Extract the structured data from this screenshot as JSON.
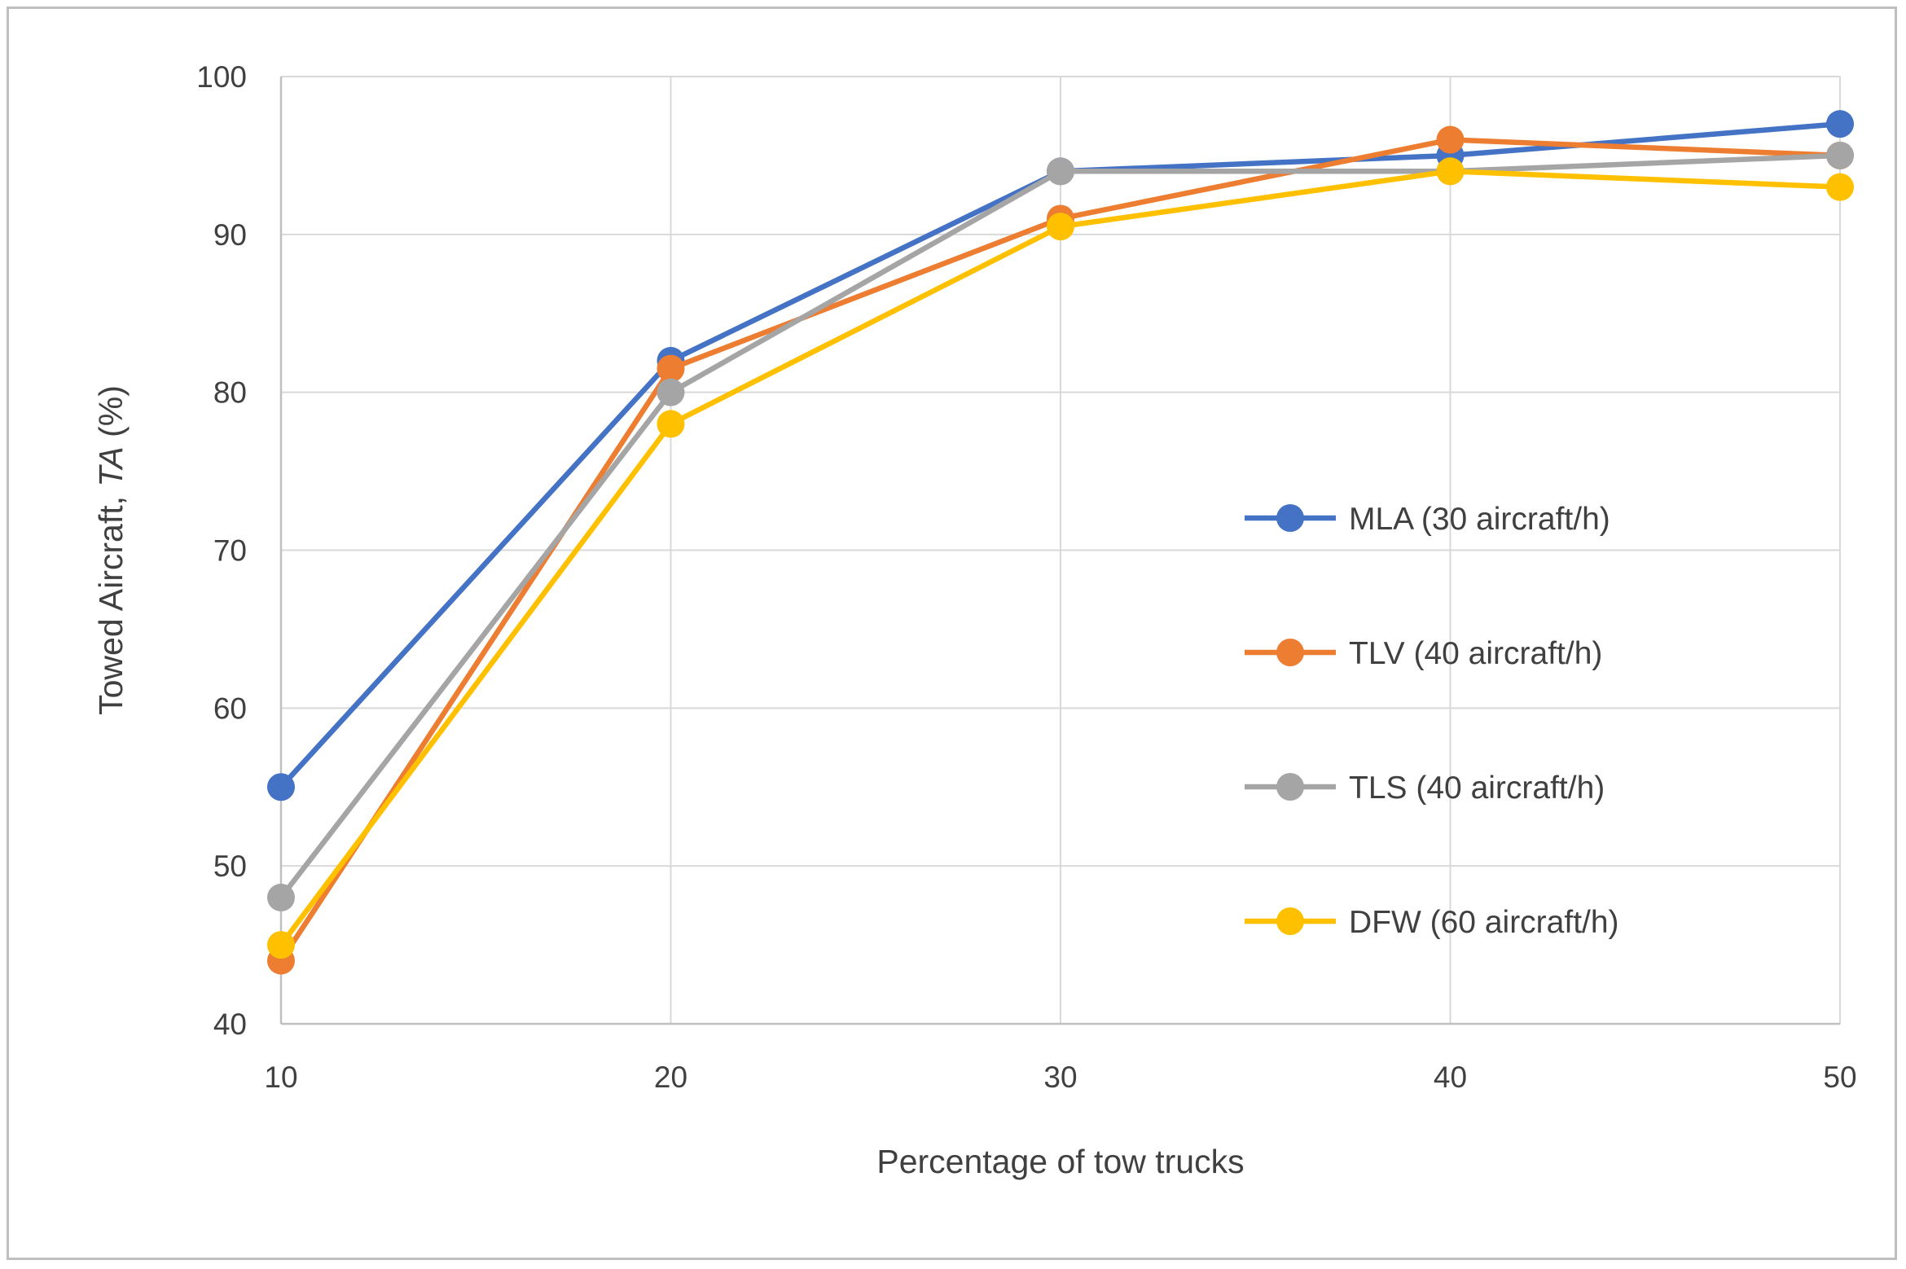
{
  "figure": {
    "background": "#FFFFFF",
    "border_color": "#BFBFBF",
    "text_color": "#404040",
    "gridline_color": "#D9D9D9",
    "axis_line_color": "#BFBFBF"
  },
  "chart_data": {
    "type": "line",
    "x": [
      10,
      20,
      30,
      40,
      50
    ],
    "xticks": [
      "10",
      "20",
      "30",
      "40",
      "50"
    ],
    "yticks": [
      "40",
      "50",
      "60",
      "70",
      "80",
      "90",
      "100"
    ],
    "ylim": [
      40,
      100
    ],
    "xlabel": "Percentage of tow trucks",
    "ylabel": "Towed Aircraft, TA (%)",
    "ylabel_parts": {
      "prefix": "Towed Aircraft, ",
      "italic": "TA",
      "suffix": " (%)"
    },
    "grid": true,
    "legend_position": "inside-right",
    "series": [
      {
        "name": "MLA (30 aircraft/h)",
        "color": "#4472C4",
        "values": [
          55,
          82,
          94,
          95,
          97
        ]
      },
      {
        "name": "TLV (40 aircraft/h)",
        "color": "#ED7D31",
        "values": [
          44,
          81.5,
          91,
          96,
          95
        ]
      },
      {
        "name": "TLS (40 aircraft/h)",
        "color": "#A5A5A5",
        "values": [
          48,
          80,
          94,
          94,
          95
        ]
      },
      {
        "name": "DFW (60 aircraft/h)",
        "color": "#FFC000",
        "values": [
          45,
          78,
          90.5,
          94,
          93
        ]
      }
    ]
  }
}
